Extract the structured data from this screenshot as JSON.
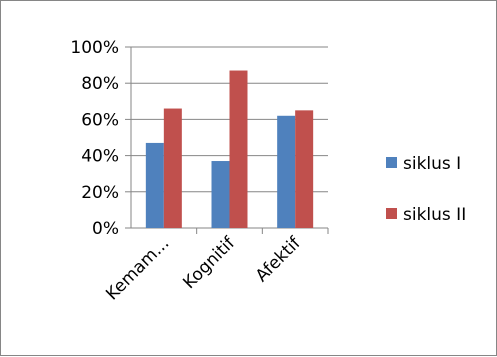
{
  "chart_data": {
    "type": "bar",
    "categories": [
      "Kemam...",
      "Kognitif",
      "Afektif"
    ],
    "series": [
      {
        "name": "siklus I",
        "values": [
          47,
          37,
          62
        ],
        "color": "#4F81BD"
      },
      {
        "name": "siklus II",
        "values": [
          66,
          87,
          65
        ],
        "color": "#C0504D"
      }
    ],
    "ylim": [
      0,
      100
    ],
    "yticks": [
      "0%",
      "20%",
      "40%",
      "60%",
      "80%",
      "100%"
    ],
    "ytick_values": [
      0,
      20,
      40,
      60,
      80,
      100
    ],
    "grid": true,
    "legend_position": "right",
    "title": "",
    "xlabel": "",
    "ylabel": ""
  }
}
